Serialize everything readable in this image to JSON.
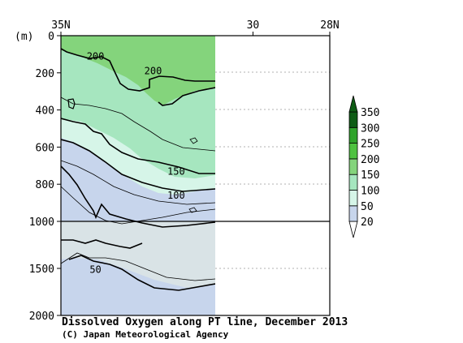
{
  "chart_data": {
    "type": "contour",
    "title": "Dissolved Oxygen along PT line, December 2013",
    "credit": "(C) Japan Meteorological Agency",
    "y_unit_label": "(m)",
    "x_ticks": [
      {
        "lat": 35,
        "label": "35N"
      },
      {
        "lat": 30,
        "label": "30"
      },
      {
        "lat": 28,
        "label": "28N"
      }
    ],
    "x_range": [
      35,
      28
    ],
    "data_extent_lat": [
      35,
      31.3
    ],
    "y_ticks_upper": [
      0,
      200,
      400,
      600,
      800,
      1000
    ],
    "y_ticks_lower": [
      1500,
      2000
    ],
    "y_range": [
      0,
      2000
    ],
    "y_break": 1000,
    "levels": [
      20,
      50,
      100,
      150,
      200,
      250,
      300,
      350
    ],
    "level_labels": [
      "20",
      "50",
      "100",
      "150",
      "200",
      "250",
      "300",
      "350"
    ],
    "level_colors": [
      "#ffffff",
      "#c7d5ec",
      "#d6f5e8",
      "#a6e6bf",
      "#84d47c",
      "#4ec240",
      "#2ea32a",
      "#0d5c14"
    ],
    "contour_labels": [
      {
        "text": "200",
        "lat": 34.1,
        "depth": 115
      },
      {
        "text": "200",
        "lat": 32.6,
        "depth": 195
      },
      {
        "text": "150",
        "lat": 32.0,
        "depth": 735
      },
      {
        "text": "100",
        "lat": 32.0,
        "depth": 865
      },
      {
        "text": "50",
        "lat": 34.1,
        "depth": 1520
      }
    ]
  }
}
